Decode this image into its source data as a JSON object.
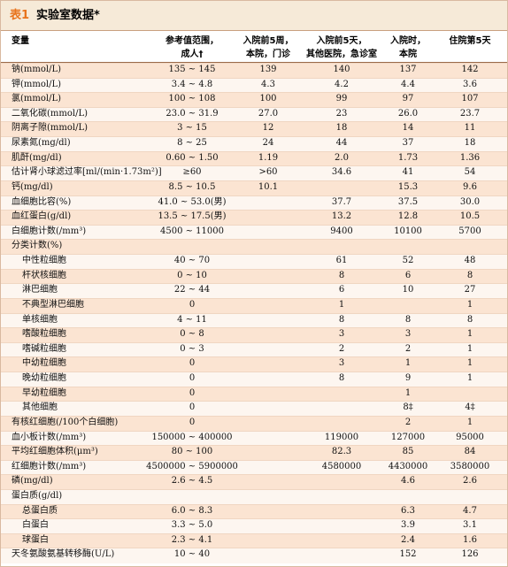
{
  "header": {
    "label": "表1",
    "title": "实验室数据*"
  },
  "table": {
    "columns": [
      [
        "变量"
      ],
      [
        "参考值范围，",
        "成人†"
      ],
      [
        "入院前5周，",
        "本院，门诊"
      ],
      [
        "入院前5天，",
        "其他医院，急诊室"
      ],
      [
        "入院时，",
        "本院"
      ],
      [
        "住院第5天"
      ]
    ],
    "rows": [
      [
        "钠(mmol/L)",
        "135 ~ 145",
        "139",
        "140",
        "137",
        "142"
      ],
      [
        "钾(mmol/L)",
        "3.4 ~ 4.8",
        "4.3",
        "4.2",
        "4.4",
        "3.6"
      ],
      [
        "氯(mmol/L)",
        "100 ~ 108",
        "100",
        "99",
        "97",
        "107"
      ],
      [
        "二氧化碳(mmol/L)",
        "23.0 ~ 31.9",
        "27.0",
        "23",
        "26.0",
        "23.7"
      ],
      [
        "阴离子隙(mmol/L)",
        "3 ~ 15",
        "12",
        "18",
        "14",
        "11"
      ],
      [
        "尿素氮(mg/dl)",
        "8 ~ 25",
        "24",
        "44",
        "37",
        "18"
      ],
      [
        "肌酐(mg/dl)",
        "0.60 ~ 1.50",
        "1.19",
        "2.0",
        "1.73",
        "1.36"
      ],
      [
        "估计肾小球滤过率[ml/(min·1.73m²)]",
        "≥60",
        ">60",
        "34.6",
        "41",
        "54"
      ],
      [
        "钙(mg/dl)",
        "8.5 ~ 10.5",
        "10.1",
        null,
        "15.3",
        "9.6"
      ],
      [
        "血细胞比容(%)",
        "41.0 ~ 53.0(男)",
        null,
        "37.7",
        "37.5",
        "30.0"
      ],
      [
        "血红蛋白(g/dl)",
        "13.5 ~ 17.5(男)",
        null,
        "13.2",
        "12.8",
        "10.5"
      ],
      [
        "白细胞计数(/mm³)",
        "4500 ~ 11000",
        null,
        "9400",
        "10100",
        "5700"
      ],
      [
        "分类计数(%)",
        null,
        null,
        null,
        null,
        null
      ],
      [
        "中性粒细胞",
        "40 ~ 70",
        null,
        "61",
        "52",
        "48"
      ],
      [
        "杆状核细胞",
        "0 ~ 10",
        null,
        "8",
        "6",
        "8"
      ],
      [
        "淋巴细胞",
        "22 ~ 44",
        null,
        "6",
        "10",
        "27"
      ],
      [
        "不典型淋巴细胞",
        "0",
        null,
        "1",
        null,
        "1"
      ],
      [
        "单核细胞",
        "4 ~ 11",
        null,
        "8",
        "8",
        "8"
      ],
      [
        "嗜酸粒细胞",
        "0 ~ 8",
        null,
        "3",
        "3",
        "1"
      ],
      [
        "嗜碱粒细胞",
        "0 ~ 3",
        null,
        "2",
        "2",
        "1"
      ],
      [
        "中幼粒细胞",
        "0",
        null,
        "3",
        "1",
        "1"
      ],
      [
        "晚幼粒细胞",
        "0",
        null,
        "8",
        "9",
        "1"
      ],
      [
        "早幼粒细胞",
        "0",
        null,
        null,
        "1",
        null
      ],
      [
        "其他细胞",
        "0",
        null,
        null,
        "8‡",
        "4‡"
      ],
      [
        "有核红细胞(/100个白细胞)",
        "0",
        null,
        null,
        "2",
        "1"
      ],
      [
        "血小板计数(/mm³)",
        "150000 ~ 400000",
        null,
        "119000",
        "127000",
        "95000"
      ],
      [
        "平均红细胞体积(μm³)",
        "80 ~ 100",
        null,
        "82.3",
        "85",
        "84"
      ],
      [
        "红细胞计数(/mm³)",
        "4500000 ~ 5900000",
        null,
        "4580000",
        "4430000",
        "3580000"
      ],
      [
        "磷(mg/dl)",
        "2.6 ~ 4.5",
        null,
        null,
        "4.6",
        "2.6"
      ],
      [
        "蛋白质(g/dl)",
        null,
        null,
        null,
        null,
        null
      ],
      [
        "总蛋白质",
        "6.0 ~ 8.3",
        null,
        null,
        "6.3",
        "4.7"
      ],
      [
        "白蛋白",
        "3.3 ~ 5.0",
        null,
        null,
        "3.9",
        "3.1"
      ],
      [
        "球蛋白",
        "2.3 ~ 4.1",
        null,
        null,
        "2.4",
        "1.6"
      ],
      [
        "天冬氨酸氨基转移酶(U/L)",
        "10 ~ 40",
        null,
        null,
        "152",
        "126"
      ]
    ]
  }
}
